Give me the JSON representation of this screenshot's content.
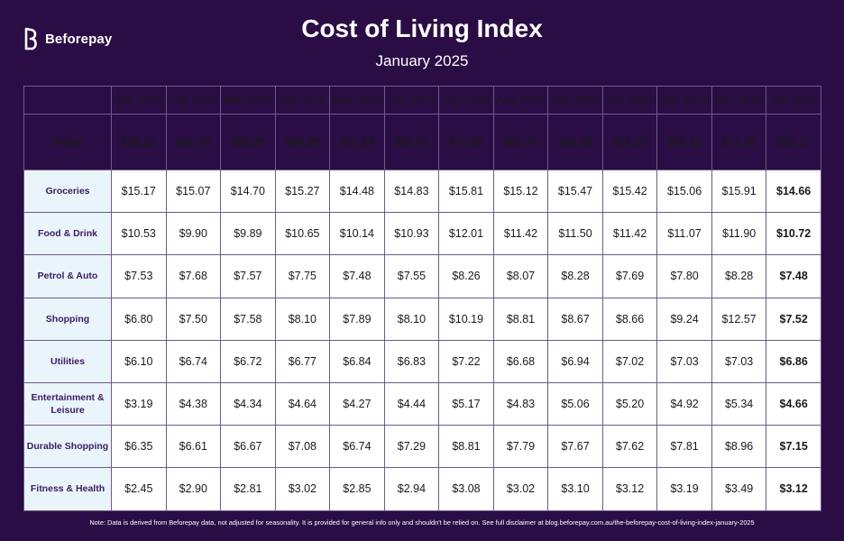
{
  "brand": {
    "name": "Beforepay",
    "logo_icon": "beforepay-logo-icon"
  },
  "colors": {
    "background": "#2a0d45",
    "label_cell": "#eaf5fb",
    "label_text": "#3c1a61",
    "cell": "#ffffff"
  },
  "chart_data": {
    "type": "table",
    "title": "Cost of Living Index",
    "subtitle": "January 2025",
    "columns": [
      "Jan 2024",
      "Feb 2024",
      "Mar 2024",
      "Apr 2024",
      "May 2024",
      "Jun 2024",
      "July 2024",
      "Aug 2024",
      "Sep 2024",
      "Oct 2024",
      "Nov 2024",
      "Dec 2024",
      "Jan 2025"
    ],
    "index_row": {
      "label": "Index",
      "values": [
        "$58.12",
        "$60.78",
        "$60.28",
        "$63.28",
        "$60.69",
        "$62.91",
        "$70.55",
        "$65.74",
        "$66.69",
        "$66.15",
        "$66.12",
        "$73.48",
        "$62.17"
      ]
    },
    "rows": [
      {
        "label": "Groceries",
        "values": [
          "$15.17",
          "$15.07",
          "$14.70",
          "$15.27",
          "$14.48",
          "$14.83",
          "$15.81",
          "$15.12",
          "$15.47",
          "$15.42",
          "$15.06",
          "$15.91",
          "$14.66"
        ]
      },
      {
        "label": "Food & Drink",
        "values": [
          "$10.53",
          "$9.90",
          "$9.89",
          "$10.65",
          "$10.14",
          "$10.93",
          "$12.01",
          "$11.42",
          "$11.50",
          "$11.42",
          "$11.07",
          "$11.90",
          "$10.72"
        ]
      },
      {
        "label": "Petrol & Auto",
        "values": [
          "$7.53",
          "$7.68",
          "$7.57",
          "$7.75",
          "$7.48",
          "$7.55",
          "$8.26",
          "$8.07",
          "$8.28",
          "$7.69",
          "$7.80",
          "$8.28",
          "$7.48"
        ]
      },
      {
        "label": "Shopping",
        "values": [
          "$6.80",
          "$7.50",
          "$7.58",
          "$8.10",
          "$7.89",
          "$8.10",
          "$10.19",
          "$8.81",
          "$8.67",
          "$8.66",
          "$9.24",
          "$12.57",
          "$7.52"
        ]
      },
      {
        "label": "Utilities",
        "values": [
          "$6.10",
          "$6.74",
          "$6.72",
          "$6.77",
          "$6.84",
          "$6.83",
          "$7.22",
          "$6.68",
          "$6.94",
          "$7.02",
          "$7.03",
          "$7.03",
          "$6.86"
        ]
      },
      {
        "label": "Entertainment & Leisure",
        "values": [
          "$3.19",
          "$4.38",
          "$4.34",
          "$4.64",
          "$4.27",
          "$4.44",
          "$5.17",
          "$4.83",
          "$5.06",
          "$5.20",
          "$4.92",
          "$5.34",
          "$4.66"
        ]
      },
      {
        "label": "Durable Shopping",
        "values": [
          "$6.35",
          "$6.61",
          "$6.67",
          "$7.08",
          "$6.74",
          "$7.29",
          "$8.81",
          "$7.79",
          "$7.67",
          "$7.62",
          "$7.81",
          "$8.96",
          "$7.15"
        ]
      },
      {
        "label": "Fitness & Health",
        "values": [
          "$2.45",
          "$2.90",
          "$2.81",
          "$3.02",
          "$2.85",
          "$2.94",
          "$3.08",
          "$3.02",
          "$3.10",
          "$3.12",
          "$3.19",
          "$3.49",
          "$3.12"
        ]
      }
    ]
  },
  "note": "Note: Data is derived from Beforepay data, not adjusted for seasonality. It is provided for general info only and shouldn't be relied on. See full disclaimer at blog.beforepay.com.au/the-beforepay-cost-of-living-index-january-2025"
}
